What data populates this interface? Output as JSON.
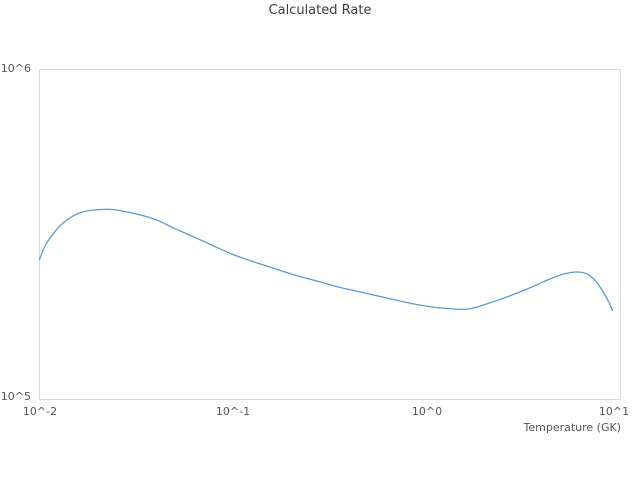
{
  "chart_data": {
    "type": "line",
    "title": "Calculated Rate",
    "xlabel": "Temperature (GK)",
    "ylabel": "",
    "xscale": "log",
    "yscale": "log",
    "xlim": [
      0.01,
      10
    ],
    "ylim": [
      100000,
      1000000
    ],
    "grid": false,
    "legend": "none",
    "x_tick_labels": [
      "10^-2",
      "10^-1",
      "10^0",
      "10^1"
    ],
    "y_tick_labels": [
      "10^5",
      "10^6"
    ],
    "line_color": "#5b9bd5",
    "axis_border_color": "#d9d9d9",
    "series": [
      {
        "name": "calculated-rate",
        "x": [
          0.01,
          0.0107,
          0.0117,
          0.0128,
          0.0145,
          0.0163,
          0.0183,
          0.0207,
          0.0238,
          0.0275,
          0.0325,
          0.0397,
          0.0486,
          0.0602,
          0.0764,
          0.0969,
          0.126,
          0.163,
          0.212,
          0.276,
          0.358,
          0.466,
          0.605,
          0.785,
          1.02,
          1.29,
          1.64,
          2.14,
          2.71,
          3.44,
          4.38,
          5.22,
          6.03,
          6.8,
          7.55,
          8.28,
          8.78,
          9.09
        ],
        "y": [
          265600,
          292800,
          316200,
          336800,
          356200,
          368800,
          374000,
          376600,
          376600,
          371400,
          363600,
          351200,
          332100,
          314100,
          294900,
          277000,
          261900,
          249500,
          237500,
          227800,
          218500,
          211000,
          203700,
          196700,
          191300,
          188700,
          188000,
          196700,
          206600,
          218500,
          232700,
          240900,
          243500,
          239200,
          226200,
          208100,
          195400,
          186100
        ]
      }
    ]
  }
}
